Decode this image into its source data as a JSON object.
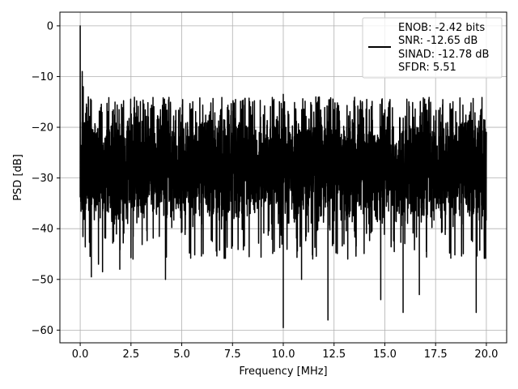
{
  "chart_data": {
    "type": "line",
    "title": "",
    "xlabel": "Frequency [MHz]",
    "ylabel": "PSD [dB]",
    "xlim": [
      -1.0,
      21.0
    ],
    "ylim": [
      -62.5,
      2.7
    ],
    "xticks": [
      0.0,
      2.5,
      5.0,
      7.5,
      10.0,
      12.5,
      15.0,
      17.5,
      20.0
    ],
    "xtick_labels": [
      "0.0",
      "2.5",
      "5.0",
      "7.5",
      "10.0",
      "12.5",
      "15.0",
      "17.5",
      "20.0"
    ],
    "yticks": [
      0,
      -10,
      -20,
      -30,
      -40,
      -50,
      -60
    ],
    "ytick_labels": [
      "0",
      "−10",
      "−20",
      "−30",
      "−40",
      "−50",
      "−60"
    ],
    "grid": true,
    "legend": {
      "placement": "top-right",
      "lines": [
        "ENOB: -2.42 bits",
        "SNR: -12.65 dB",
        "SINAD: -12.78 dB",
        "SFDR: 5.51"
      ]
    },
    "series": [
      {
        "color": "#000000",
        "noise_floor_db": -28,
        "noise_band_db": [
          -40,
          -17
        ],
        "features": [
          {
            "x": 0.0,
            "y": 0.0
          },
          {
            "x": 0.05,
            "y": -26
          },
          {
            "x": 0.1,
            "y": -9
          },
          {
            "x": 0.15,
            "y": -12
          },
          {
            "x": 0.3,
            "y": -35
          },
          {
            "x": 0.4,
            "y": -14
          },
          {
            "x": 0.55,
            "y": -49.5
          },
          {
            "x": 0.9,
            "y": -47
          },
          {
            "x": 1.1,
            "y": -48.5
          },
          {
            "x": 1.95,
            "y": -48
          },
          {
            "x": 2.6,
            "y": -46
          },
          {
            "x": 4.2,
            "y": -50
          },
          {
            "x": 10.0,
            "y": -59.5
          },
          {
            "x": 10.0,
            "y": -13.5
          },
          {
            "x": 10.9,
            "y": -50
          },
          {
            "x": 12.2,
            "y": -58
          },
          {
            "x": 14.8,
            "y": -54
          },
          {
            "x": 15.9,
            "y": -56.5
          },
          {
            "x": 16.7,
            "y": -53
          },
          {
            "x": 19.5,
            "y": -56.5
          },
          {
            "x": 20.0,
            "y": -21
          }
        ]
      }
    ]
  }
}
